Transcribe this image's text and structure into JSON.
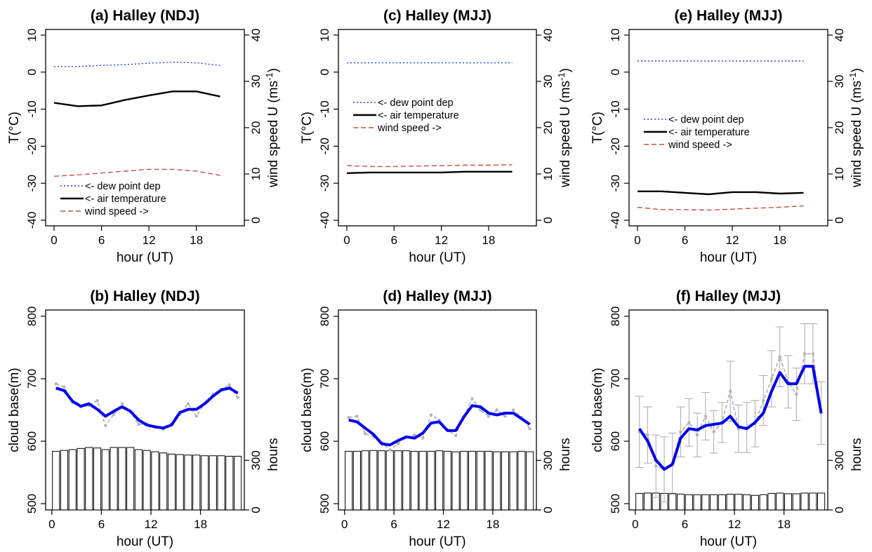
{
  "chart_data": [
    {
      "id": "a",
      "type": "line",
      "title": "(a) Halley (NDJ)",
      "xlabel": "hour (UT)",
      "ylabel": "T(°C)",
      "y2label": "wind speed U (ms",
      "y2label_sup": "-1",
      "y2label_end": ")",
      "xlim": [
        0,
        23
      ],
      "ylim": [
        -40,
        10
      ],
      "y2lim": [
        0,
        40
      ],
      "xticks": [
        "0",
        "6",
        "12",
        "18"
      ],
      "yticks": [
        "10",
        "0",
        "-10",
        "-20",
        "-30",
        "-40"
      ],
      "y2ticks": [
        "40",
        "30",
        "20",
        "10",
        "0"
      ],
      "legend": {
        "position": "bottom-left",
        "entries": [
          "<- dew point dep",
          "<- air temperature",
          "wind speed ->"
        ]
      },
      "x": [
        0,
        3,
        6,
        9,
        12,
        15,
        18,
        21
      ],
      "series": [
        {
          "name": "<- dew point dep",
          "axis": "left",
          "color": "#3333ff",
          "style": "dotted",
          "values": [
            1.5,
            1.5,
            1.8,
            2.0,
            2.4,
            2.7,
            2.5,
            1.8
          ]
        },
        {
          "name": "<- air temperature",
          "axis": "left",
          "color": "#000000",
          "style": "solid",
          "values": [
            -8.3,
            -9.2,
            -9.0,
            -7.5,
            -6.3,
            -5.2,
            -5.2,
            -6.6
          ]
        },
        {
          "name": "wind speed ->",
          "axis": "right",
          "color": "#c0504d",
          "style": "dashed",
          "values": [
            9.5,
            9.8,
            10.2,
            10.6,
            11.0,
            11.0,
            10.6,
            9.7
          ]
        }
      ]
    },
    {
      "id": "c",
      "type": "line",
      "title": "(c) Halley (MJJ)",
      "xlabel": "hour (UT)",
      "ylabel": "T(°C)",
      "y2label": "wind speed U (ms",
      "y2label_sup": "-1",
      "y2label_end": ")",
      "xlim": [
        0,
        23
      ],
      "ylim": [
        -40,
        10
      ],
      "y2lim": [
        0,
        40
      ],
      "xticks": [
        "0",
        "6",
        "12",
        "18"
      ],
      "yticks": [
        "10",
        "0",
        "-10",
        "-20",
        "-30",
        "-40"
      ],
      "y2ticks": [
        "40",
        "30",
        "20",
        "10",
        "0"
      ],
      "legend": {
        "position": "middle-left",
        "entries": [
          "<- dew point dep",
          "<- air temperature",
          "wind speed ->"
        ]
      },
      "x": [
        0,
        3,
        6,
        9,
        12,
        15,
        18,
        21
      ],
      "series": [
        {
          "name": "<- dew point dep",
          "axis": "left",
          "color": "#3333ff",
          "style": "dotted",
          "values": [
            2.5,
            2.5,
            2.5,
            2.5,
            2.5,
            2.5,
            2.5,
            2.5
          ]
        },
        {
          "name": "<- air temperature",
          "axis": "left",
          "color": "#000000",
          "style": "solid",
          "values": [
            -27.3,
            -27.1,
            -27.1,
            -27.1,
            -27.1,
            -26.9,
            -26.9,
            -26.9
          ]
        },
        {
          "name": "wind speed ->",
          "axis": "right",
          "color": "#c0504d",
          "style": "dashed",
          "values": [
            11.8,
            11.6,
            11.6,
            11.7,
            11.8,
            11.9,
            11.9,
            12.0
          ]
        }
      ]
    },
    {
      "id": "e",
      "type": "line",
      "title": "(e) Halley (MJJ)",
      "xlabel": "hour (UT)",
      "ylabel": "T(°C)",
      "y2label": "wind speed U (ms",
      "y2label_sup": "-1",
      "y2label_end": ")",
      "xlim": [
        0,
        23
      ],
      "ylim": [
        -40,
        10
      ],
      "y2lim": [
        0,
        40
      ],
      "xticks": [
        "0",
        "6",
        "12",
        "18"
      ],
      "yticks": [
        "10",
        "0",
        "-10",
        "-20",
        "-30",
        "-40"
      ],
      "y2ticks": [
        "40",
        "30",
        "20",
        "10",
        "0"
      ],
      "legend": {
        "position": "middle-left",
        "entries": [
          "<- dew point dep",
          "<- air temperature",
          "wind speed ->"
        ]
      },
      "x": [
        0,
        3,
        6,
        9,
        12,
        15,
        18,
        21
      ],
      "series": [
        {
          "name": "<- dew point dep",
          "axis": "left",
          "color": "#3333ff",
          "style": "dotted",
          "values": [
            3.0,
            3.0,
            3.0,
            3.0,
            3.0,
            3.0,
            3.0,
            3.0
          ]
        },
        {
          "name": "<- air temperature",
          "axis": "left",
          "color": "#000000",
          "style": "solid",
          "values": [
            -32.2,
            -32.2,
            -32.6,
            -33.0,
            -32.4,
            -32.4,
            -32.8,
            -32.6
          ]
        },
        {
          "name": "wind speed ->",
          "axis": "right",
          "color": "#c0504d",
          "style": "dashed",
          "values": [
            2.8,
            2.3,
            2.3,
            2.2,
            2.4,
            2.6,
            2.8,
            3.1
          ]
        }
      ]
    },
    {
      "id": "b",
      "type": "line",
      "title": "(b) Halley (NDJ)",
      "xlabel": "hour (UT)",
      "ylabel": "cloud base(m)",
      "y2label": "hours",
      "xlim": [
        -0.75,
        23.3
      ],
      "ylim": [
        490,
        810
      ],
      "y2lim": [
        0,
        1210
      ],
      "xticks": [
        "0",
        "6",
        "12",
        "18"
      ],
      "yticks": [
        "800",
        "700",
        "600",
        "500"
      ],
      "y2ticks": [
        "300",
        "0"
      ],
      "x": [
        0.5,
        1.5,
        2.5,
        3.5,
        4.5,
        5.5,
        6.5,
        7.5,
        8.5,
        9.5,
        10.5,
        11.5,
        12.5,
        13.5,
        14.5,
        15.5,
        16.5,
        17.5,
        18.5,
        19.5,
        20.5,
        21.5,
        22.5
      ],
      "smoothed": [
        685,
        681,
        664,
        656,
        660,
        651,
        640,
        648,
        655,
        648,
        634,
        626,
        623,
        621,
        626,
        646,
        651,
        651,
        660,
        672,
        682,
        685,
        677
      ],
      "raw": [
        692,
        687,
        662,
        655,
        657,
        665,
        625,
        643,
        660,
        648,
        627,
        628,
        622,
        619,
        628,
        643,
        660,
        640,
        660,
        675,
        683,
        690,
        670
      ],
      "hours": [
        355,
        360,
        365,
        372,
        378,
        375,
        365,
        378,
        378,
        378,
        365,
        360,
        352,
        345,
        338,
        335,
        332,
        332,
        328,
        328,
        328,
        325,
        325
      ]
    },
    {
      "id": "d",
      "type": "line",
      "title": "(d) Halley (MJJ)",
      "xlabel": "hour (UT)",
      "ylabel": "cloud base(m)",
      "y2label": "hours",
      "xlim": [
        -0.75,
        23.3
      ],
      "ylim": [
        490,
        810
      ],
      "y2lim": [
        0,
        1210
      ],
      "xticks": [
        "0",
        "6",
        "12",
        "18"
      ],
      "yticks": [
        "800",
        "700",
        "600",
        "500"
      ],
      "y2ticks": [
        "300",
        "0"
      ],
      "x": [
        0.5,
        1.5,
        2.5,
        3.5,
        4.5,
        5.5,
        6.5,
        7.5,
        8.5,
        9.5,
        10.5,
        11.5,
        12.5,
        13.5,
        14.5,
        15.5,
        16.5,
        17.5,
        18.5,
        19.5,
        20.5,
        21.5,
        22.5
      ],
      "smoothed": [
        634,
        631,
        621,
        611,
        596,
        594,
        601,
        607,
        605,
        613,
        629,
        631,
        617,
        617,
        639,
        657,
        655,
        645,
        642,
        645,
        645,
        636,
        627
      ],
      "raw": [
        638,
        640,
        612,
        607,
        598,
        586,
        596,
        606,
        610,
        605,
        642,
        634,
        618,
        609,
        640,
        668,
        650,
        640,
        650,
        640,
        650,
        638,
        620
      ],
      "hours": [
        355,
        355,
        358,
        360,
        358,
        358,
        358,
        358,
        355,
        355,
        355,
        358,
        355,
        352,
        355,
        355,
        355,
        355,
        352,
        352,
        352,
        355,
        352
      ]
    },
    {
      "id": "f",
      "type": "line",
      "title": "(f) Halley (MJJ)",
      "xlabel": "hour (UT)",
      "ylabel": "cloud base(m)",
      "y2label": "hours",
      "xlim": [
        -0.75,
        23.3
      ],
      "ylim": [
        490,
        810
      ],
      "y2lim": [
        0,
        1210
      ],
      "xticks": [
        "0",
        "6",
        "12",
        "18"
      ],
      "yticks": [
        "800",
        "700",
        "600",
        "500"
      ],
      "y2ticks": [
        "300",
        "0"
      ],
      "x": [
        0.5,
        1.5,
        2.5,
        3.5,
        4.5,
        5.5,
        6.5,
        7.5,
        8.5,
        9.5,
        10.5,
        11.5,
        12.5,
        13.5,
        14.5,
        15.5,
        16.5,
        17.5,
        18.5,
        19.5,
        20.5,
        21.5,
        22.5
      ],
      "smoothed": [
        620,
        600,
        570,
        555,
        563,
        605,
        620,
        618,
        625,
        627,
        629,
        640,
        623,
        620,
        630,
        645,
        680,
        710,
        692,
        692,
        720,
        720,
        645
      ],
      "raw": [
        615,
        610,
        560,
        555,
        565,
        615,
        630,
        610,
        640,
        615,
        630,
        680,
        620,
        622,
        628,
        665,
        700,
        735,
        695,
        675,
        740,
        740,
        645
      ],
      "error": [
        57,
        45,
        50,
        52,
        48,
        40,
        38,
        35,
        38,
        34,
        32,
        48,
        38,
        40,
        37,
        40,
        45,
        48,
        42,
        42,
        48,
        48,
        50
      ],
      "hours": [
        100,
        102,
        102,
        100,
        98,
        96,
        92,
        92,
        92,
        92,
        92,
        95,
        95,
        92,
        88,
        92,
        100,
        102,
        98,
        98,
        102,
        102,
        102
      ]
    }
  ]
}
